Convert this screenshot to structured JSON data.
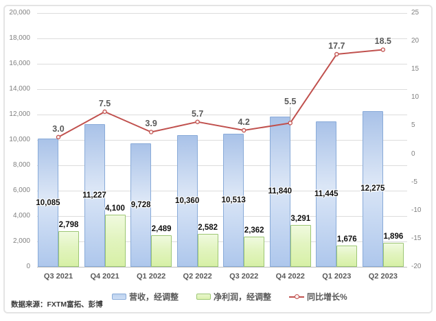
{
  "chart_data": {
    "type": "combo_bar_line",
    "categories": [
      "Q3 2021",
      "Q4 2021",
      "Q1 2022",
      "Q2 2022",
      "Q3 2022",
      "Q4 2022",
      "Q1 2023",
      "Q2 2023"
    ],
    "series": [
      {
        "name": "营收，经调整",
        "type": "bar",
        "axis": "left",
        "values": [
          10085,
          11227,
          9728,
          10360,
          10513,
          11840,
          11445,
          12275
        ],
        "labels": [
          "10,085",
          "11,227",
          "9,728",
          "10,360",
          "10,513",
          "11,840",
          "11,445",
          "12,275"
        ],
        "label_position": "center"
      },
      {
        "name": "净利润，经调整",
        "type": "bar",
        "axis": "left",
        "values": [
          2798,
          4100,
          2489,
          2582,
          2362,
          3291,
          1676,
          1896
        ],
        "labels": [
          "2,798",
          "4,100",
          "2,489",
          "2,582",
          "2,362",
          "3,291",
          "1,676",
          "1,896"
        ],
        "label_position": "outside_end"
      },
      {
        "name": "同比增长%",
        "type": "line",
        "axis": "right",
        "values": [
          3.0,
          7.5,
          3.9,
          5.7,
          4.2,
          5.5,
          17.7,
          18.5
        ],
        "labels": [
          "3.0",
          "7.5",
          "3.9",
          "5.7",
          "4.2",
          "5.5",
          "17.7",
          "18.5"
        ],
        "label_position": "above",
        "callout_indices": [
          5
        ]
      }
    ],
    "left_axis": {
      "min": 0,
      "max": 20000,
      "step": 2000,
      "tick_labels_top_to_bottom": [
        "20,000",
        "18,000",
        "16,000",
        "14,000",
        "12,000",
        "10,000",
        "8,000",
        "6,000",
        "4,000",
        "2,000",
        "0"
      ]
    },
    "right_axis": {
      "min": -20,
      "max": 25,
      "step": 5,
      "tick_labels_top_to_bottom": [
        "25",
        "20",
        "15",
        "10",
        "5",
        "0",
        "-5",
        "-10",
        "-15",
        "-20"
      ]
    },
    "grid": "horizontal",
    "legend_position": "bottom",
    "colors": {
      "revenue_bar_border": "#88aad8",
      "revenue_bar_fill": "#bdd2ee",
      "profit_bar_border": "#9cc673",
      "profit_bar_fill": "#dcf2b0",
      "growth_line": "#c0504d",
      "marker_fill": "#fcf0ef",
      "gridline": "#dcdcdc",
      "axis_text": "#7f7f7f",
      "value_label_text": "#0d0d0d",
      "line_label_text": "#595959"
    }
  },
  "footer": {
    "source_note": "数据来源：FXTM富拓、彭博"
  }
}
